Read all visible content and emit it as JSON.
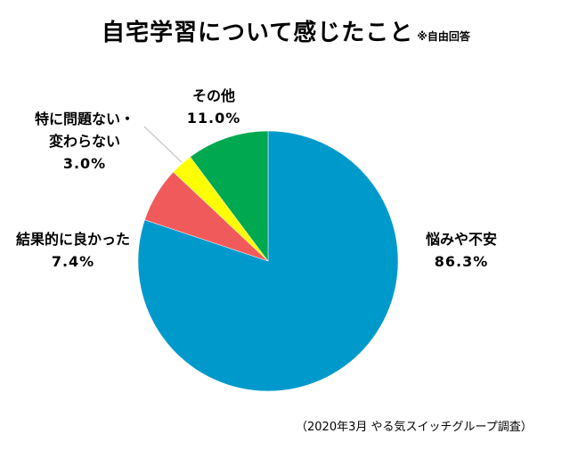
{
  "chart_data": {
    "type": "pie",
    "title": "自宅学習について感じたこと",
    "note": "※自由回答",
    "source": "（2020年3月 やる気スイッチグループ調査）",
    "start_angle_deg": 0,
    "direction": "clockwise",
    "slices": [
      {
        "label": "悩みや不安",
        "value": 86.3,
        "display": "86.3%",
        "color": "#0099cc"
      },
      {
        "label": "結果的に良かった",
        "value": 7.4,
        "display": "7.4%",
        "color": "#f15a5a"
      },
      {
        "label_line1": "特に問題ない・",
        "label_line2": "変わらない",
        "value": 3.0,
        "display": "3.0%",
        "color": "#ffff00"
      },
      {
        "label": "その他",
        "value": 11.0,
        "display": "11.0%",
        "color": "#00a850"
      }
    ]
  }
}
